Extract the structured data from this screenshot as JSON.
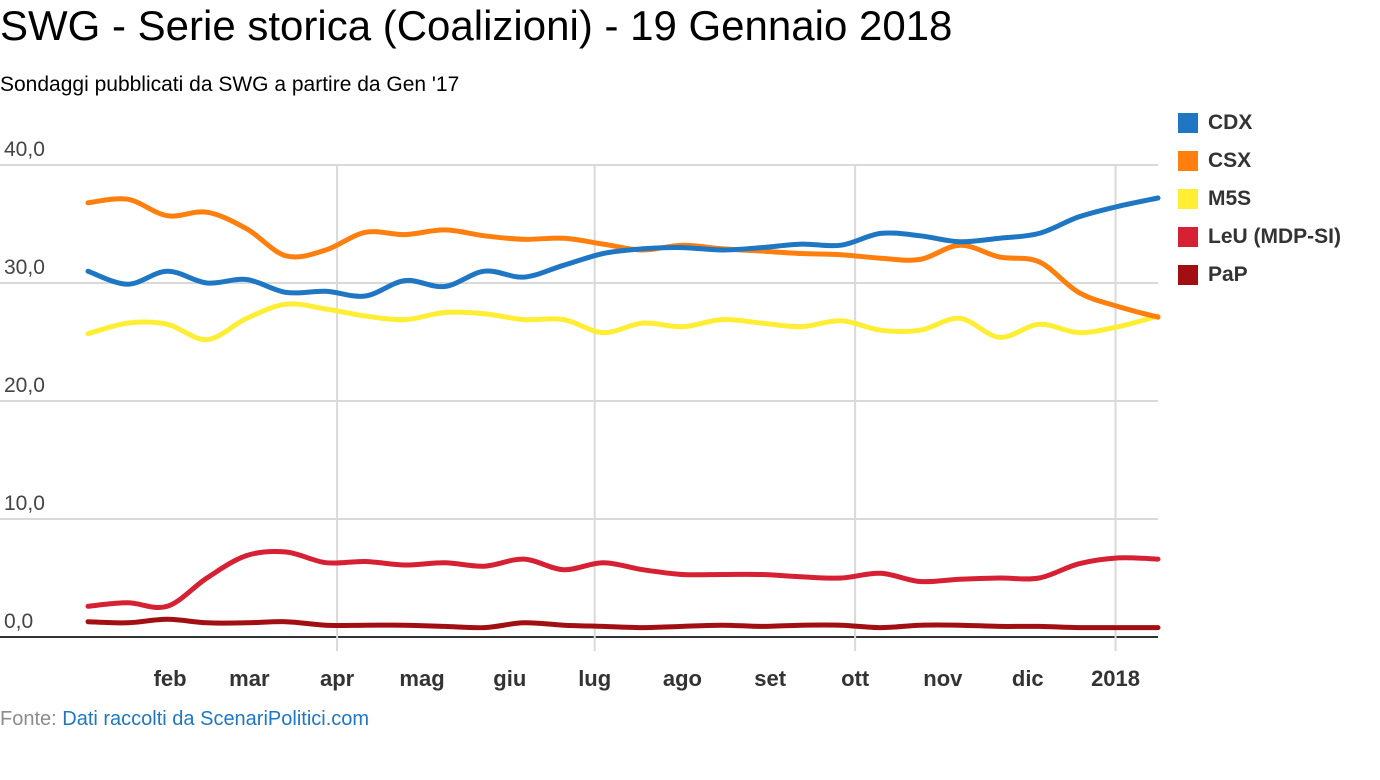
{
  "chart_data": {
    "type": "line",
    "title": "SWG - Serie storica (Coalizioni) - 19 Gennaio 2018",
    "subtitle": "Sondaggi pubblicati da SWG a partire da Gen '17",
    "x_ticks": [
      "feb",
      "mar",
      "apr",
      "mag",
      "giu",
      "lug",
      "ago",
      "set",
      "ott",
      "nov",
      "dic",
      "2018"
    ],
    "y_ticks": [
      "40,0",
      "30,0",
      "20,0",
      "10,0",
      "0,0"
    ],
    "ylim": [
      0,
      40
    ],
    "grid": true,
    "legend_position": "right",
    "x": [
      "2017-01-03",
      "2017-01-17",
      "2017-01-31",
      "2017-02-14",
      "2017-02-28",
      "2017-03-14",
      "2017-03-28",
      "2017-04-11",
      "2017-04-25",
      "2017-05-09",
      "2017-05-23",
      "2017-06-06",
      "2017-06-20",
      "2017-07-04",
      "2017-07-18",
      "2017-08-01",
      "2017-08-15",
      "2017-08-29",
      "2017-09-12",
      "2017-09-26",
      "2017-10-10",
      "2017-10-24",
      "2017-11-07",
      "2017-11-21",
      "2017-12-05",
      "2017-12-19",
      "2018-01-02",
      "2018-01-16"
    ],
    "series": [
      {
        "name": "CDX",
        "color": "#1f77c4",
        "values": [
          31.0,
          29.9,
          31.0,
          30.0,
          30.3,
          29.2,
          29.3,
          28.9,
          30.2,
          29.7,
          31.0,
          30.5,
          31.5,
          32.5,
          32.9,
          33.0,
          32.8,
          33.0,
          33.3,
          33.2,
          34.2,
          34.0,
          33.5,
          33.8,
          34.2,
          35.6,
          36.5,
          37.2
        ]
      },
      {
        "name": "CSX",
        "color": "#ff7f0e",
        "values": [
          36.8,
          37.1,
          35.7,
          36.0,
          34.6,
          32.3,
          32.8,
          34.3,
          34.1,
          34.5,
          34.0,
          33.7,
          33.8,
          33.3,
          32.8,
          33.2,
          32.9,
          32.7,
          32.5,
          32.4,
          32.1,
          32.0,
          33.2,
          32.2,
          31.8,
          29.2,
          28.0,
          27.1
        ]
      },
      {
        "name": "M5S",
        "color": "#ffee33",
        "values": [
          25.7,
          26.6,
          26.5,
          25.2,
          27.0,
          28.2,
          27.8,
          27.2,
          26.9,
          27.5,
          27.4,
          26.9,
          26.9,
          25.8,
          26.6,
          26.3,
          26.9,
          26.6,
          26.3,
          26.8,
          26.0,
          26.0,
          27.0,
          25.4,
          26.5,
          25.8,
          26.3,
          27.2
        ]
      },
      {
        "name": "LeU (MDP-SI)",
        "color": "#d62034",
        "values": [
          2.6,
          2.9,
          2.6,
          5.0,
          6.9,
          7.2,
          6.3,
          6.4,
          6.1,
          6.3,
          6.0,
          6.6,
          5.7,
          6.3,
          5.7,
          5.3,
          5.3,
          5.3,
          5.1,
          5.0,
          5.4,
          4.7,
          4.9,
          5.0,
          5.0,
          6.2,
          6.7,
          6.6
        ]
      },
      {
        "name": "PaP",
        "color": "#a10f12",
        "values": [
          1.3,
          1.2,
          1.5,
          1.2,
          1.2,
          1.3,
          1.0,
          1.0,
          1.0,
          0.9,
          0.8,
          1.2,
          1.0,
          0.9,
          0.8,
          0.9,
          1.0,
          0.9,
          1.0,
          1.0,
          0.8,
          1.0,
          1.0,
          0.9,
          0.9,
          0.8,
          0.8,
          0.8
        ]
      }
    ]
  },
  "source": {
    "label": "Fonte: ",
    "link_text": "Dati raccolti da ScenariPolitici.com"
  }
}
